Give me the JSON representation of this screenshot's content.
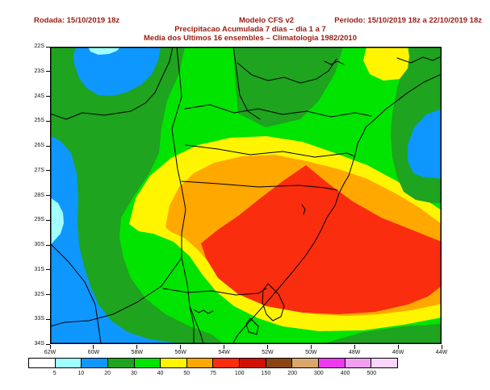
{
  "header": {
    "run_label": "Rodada: 15/10/2019 18z",
    "model_label": "Modelo CFS v2",
    "period_label": "Periodo: 15/10/2019 18z a 22/10/2019 18z",
    "subtitle1": "Precipitacao Acumulada 7 dias – dia 1 a 7",
    "subtitle2": "Media dos Ultimos 16 ensembles – Climatologia 1982/2010",
    "text_color": "#9A1B10"
  },
  "map": {
    "lat_tick_labels": [
      "22S",
      "23S",
      "24S",
      "25S",
      "26S",
      "27S",
      "28S",
      "29S",
      "30S",
      "31S",
      "32S",
      "33S",
      "34S"
    ],
    "lon_tick_labels": [
      "62W",
      "60W",
      "58W",
      "56W",
      "54W",
      "52W",
      "50W",
      "48W",
      "46W",
      "44W"
    ],
    "region_palette": {
      "under_5": "#FFFFFF",
      "5_10": "#A0FFFF",
      "10_20": "#0D97FF",
      "20_30": "#1EA41E",
      "30_40": "#00E400",
      "40_50": "#FFF500",
      "50_75": "#FFA800",
      "75_100": "#FA2D0E"
    }
  },
  "colorbar": {
    "boundary_labels": [
      "5",
      "10",
      "20",
      "30",
      "40",
      "50",
      "75",
      "100",
      "150",
      "200",
      "300",
      "400",
      "500"
    ],
    "colors": [
      "#FFFFFF",
      "#A0FFFF",
      "#0D97FF",
      "#1EA41E",
      "#00E400",
      "#FFF500",
      "#FFA800",
      "#FA2D0E",
      "#D01000",
      "#8B4513",
      "#D9A76B",
      "#EE3AEE",
      "#F29FF2",
      "#FBD6FB"
    ]
  }
}
